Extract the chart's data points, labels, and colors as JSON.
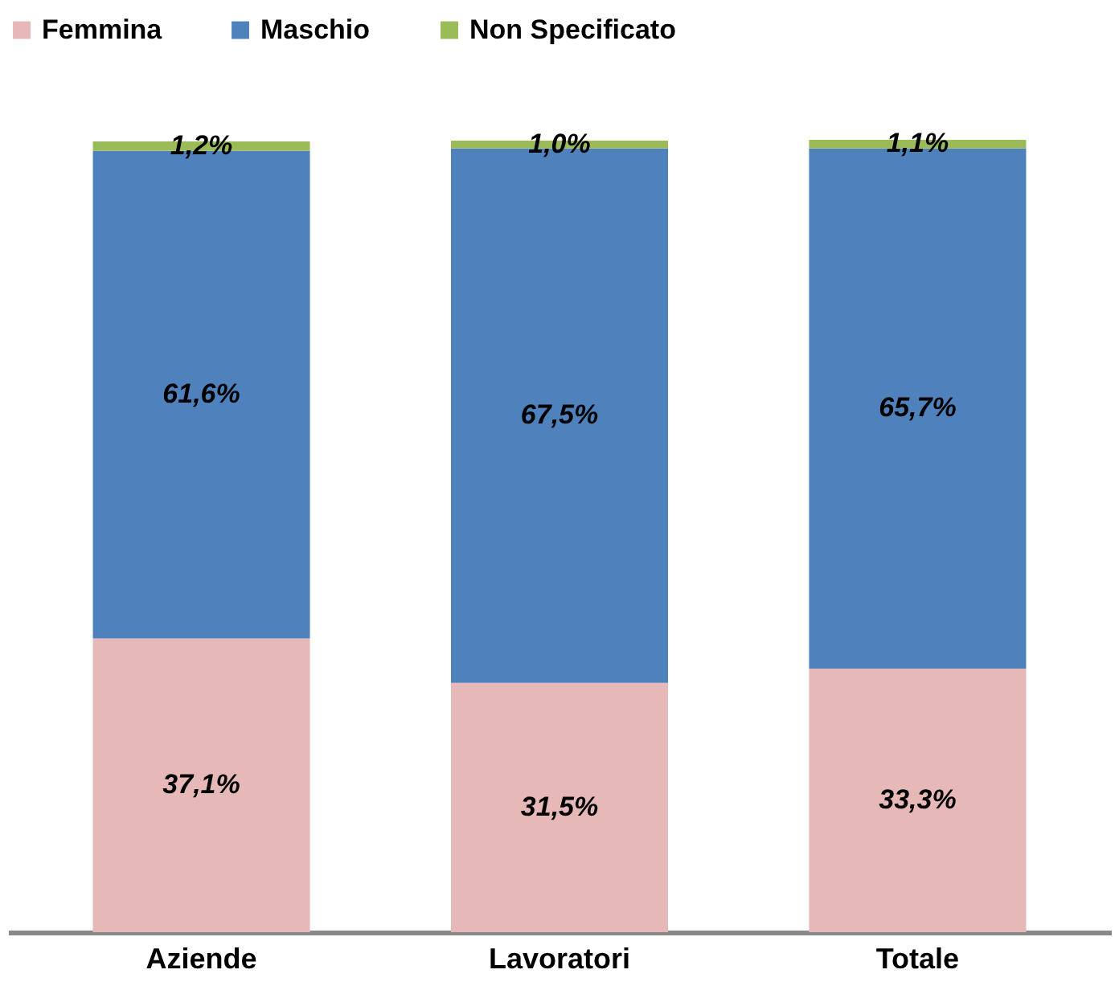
{
  "chart_data": {
    "type": "bar",
    "stacked": true,
    "categories": [
      "Aziende",
      "Lavoratori",
      "Totale"
    ],
    "series": [
      {
        "name": "Femmina",
        "color": "#e6b9b8",
        "values": [
          37.1,
          31.5,
          33.3
        ],
        "value_labels": [
          "37,1%",
          "31,5%",
          "33,3%"
        ]
      },
      {
        "name": "Maschio",
        "color": "#4f81bd",
        "values": [
          61.6,
          67.5,
          65.7
        ],
        "value_labels": [
          "61,6%",
          "67,5%",
          "65,7%"
        ]
      },
      {
        "name": "Non Specificato",
        "color": "#9bbb59",
        "values": [
          1.2,
          1.0,
          1.1
        ],
        "value_labels": [
          "1,2%",
          "1,0%",
          "1,1%"
        ]
      }
    ],
    "legend": "top",
    "grid": false
  }
}
